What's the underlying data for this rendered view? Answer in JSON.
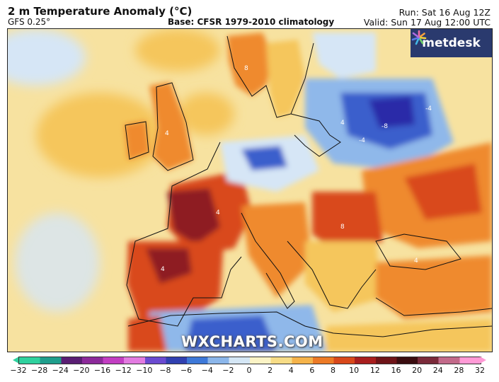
{
  "header": {
    "title": "2 m Temperature Anomaly (°C)",
    "model": "GFS 0.25°",
    "base": "Base: CFSR 1979-2010 climatology",
    "run": "Run: Sat 16 Aug 12Z",
    "valid": "Valid: Sun 17 Aug 12:00 UTC"
  },
  "brand": {
    "name": "metdesk",
    "icon": "metdesk-star-icon",
    "bg": "#2a3a6e"
  },
  "watermark": "WXCHARTS.COM",
  "colorbar": {
    "ticks": [
      "−32",
      "−28",
      "−24",
      "−20",
      "−16",
      "−12",
      "−10",
      "−8",
      "−6",
      "−4",
      "−2",
      "0",
      "2",
      "4",
      "6",
      "8",
      "10",
      "12",
      "16",
      "20",
      "24",
      "28",
      "32"
    ],
    "colors": [
      "#2fd19e",
      "#1f9e8c",
      "#5a1e73",
      "#8c2a9a",
      "#c23ec2",
      "#e27be0",
      "#6a4ad0",
      "#3040b0",
      "#3d78d8",
      "#8bb6ea",
      "#d4e6f5",
      "#fbf3c5",
      "#f7dc86",
      "#f5b34a",
      "#ec7a26",
      "#d8481b",
      "#a81e1e",
      "#6e1418",
      "#3a0d10",
      "#7a2a3a",
      "#c26a8a",
      "#ff9ad6"
    ]
  },
  "map": {
    "colors": {
      "ocean": "#f7e2a0",
      "warm_light": "#f5c65c",
      "warm_mid": "#ef8a2f",
      "warm_strong": "#d9481d",
      "hot": "#8e1a22",
      "very_hot": "#4a0f14",
      "cool_light": "#d6e6f6",
      "cool_mid": "#8fb8ea",
      "cool_strong": "#3a5fcc",
      "cold": "#2a2aa8",
      "coast": "#111111"
    },
    "anomaly_labels": [
      "8",
      "4",
      "4",
      "-4",
      "-8",
      "-4",
      "4",
      "8",
      "4",
      "4"
    ]
  }
}
